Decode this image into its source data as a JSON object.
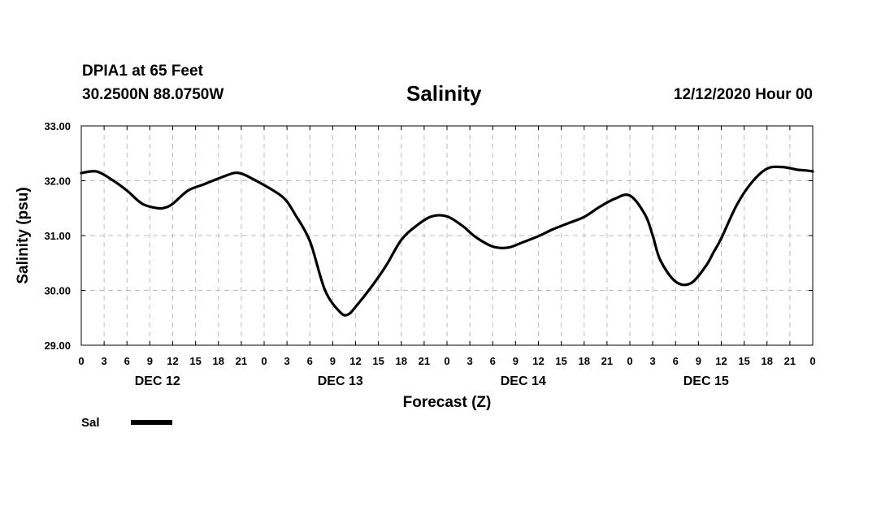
{
  "header": {
    "station": "DPIA1 at 65 Feet",
    "coords": "30.2500N 88.0750W",
    "title": "Salinity",
    "stamp": "12/12/2020 Hour 00"
  },
  "chart_data": {
    "type": "line",
    "title": "Salinity",
    "xlabel": "Forecast (Z)",
    "ylabel": "Salinity (psu)",
    "ylim": [
      29.0,
      33.0
    ],
    "yticks": [
      "29.00",
      "30.00",
      "31.00",
      "32.00",
      "33.00"
    ],
    "xlim_hours": [
      0,
      96
    ],
    "xtick_labels": [
      "0",
      "3",
      "6",
      "9",
      "12",
      "15",
      "18",
      "21",
      "0",
      "3",
      "6",
      "9",
      "12",
      "15",
      "18",
      "21",
      "0",
      "3",
      "6",
      "9",
      "12",
      "15",
      "18",
      "21",
      "0",
      "3",
      "6",
      "9",
      "12",
      "15",
      "18",
      "21",
      "0"
    ],
    "day_labels": [
      "DEC 12",
      "DEC 13",
      "DEC 14",
      "DEC 15"
    ],
    "grid": true,
    "legend": {
      "placement": "bottom-left"
    },
    "series": [
      {
        "name": "Sal",
        "color": "#000000",
        "x": [
          0,
          2,
          4,
          6,
          8,
          10,
          11,
          12,
          14,
          16,
          18,
          20,
          21,
          22,
          24,
          26,
          27,
          28,
          30,
          32,
          34,
          35,
          36,
          38,
          40,
          42,
          44,
          46,
          48,
          50,
          51,
          52,
          54,
          56,
          58,
          60,
          62,
          64,
          66,
          68,
          70,
          72,
          74,
          75,
          76,
          78,
          80,
          82,
          83,
          84,
          86,
          88,
          90,
          92,
          94,
          95,
          96
        ],
        "values": [
          32.14,
          32.17,
          32.02,
          31.82,
          31.58,
          31.5,
          31.51,
          31.58,
          31.82,
          31.93,
          32.04,
          32.14,
          32.13,
          32.07,
          31.92,
          31.75,
          31.62,
          31.4,
          30.9,
          30.0,
          29.6,
          29.56,
          29.7,
          30.05,
          30.45,
          30.92,
          31.18,
          31.35,
          31.35,
          31.18,
          31.06,
          30.95,
          30.8,
          30.78,
          30.88,
          30.99,
          31.12,
          31.23,
          31.34,
          31.52,
          31.67,
          31.73,
          31.38,
          31.0,
          30.55,
          30.16,
          30.13,
          30.45,
          30.7,
          30.95,
          31.55,
          31.97,
          32.22,
          32.25,
          32.2,
          32.19,
          32.17
        ]
      }
    ]
  }
}
